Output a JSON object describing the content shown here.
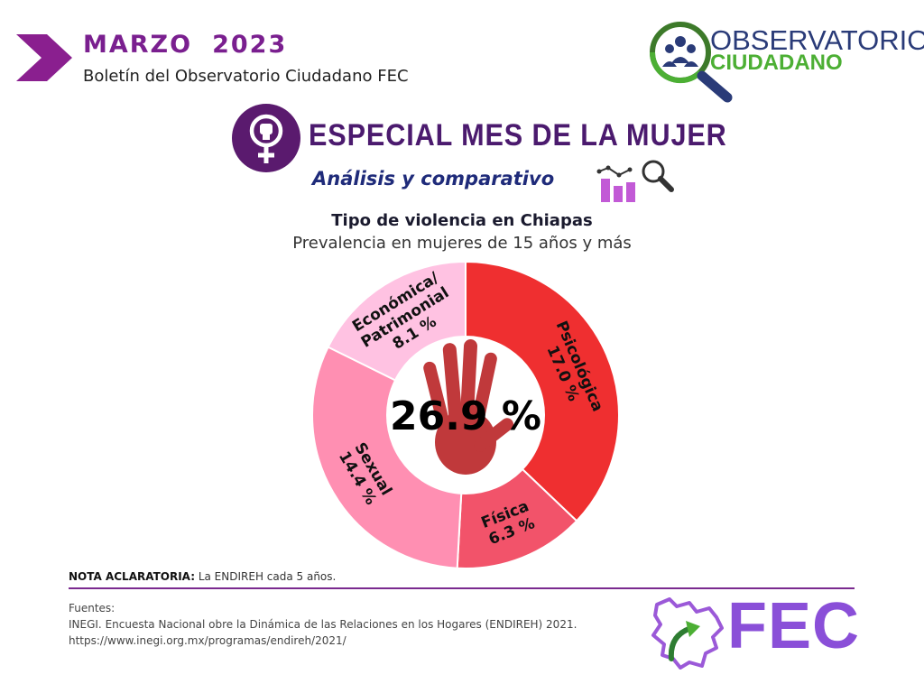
{
  "header": {
    "month": "MARZO",
    "year": "2023",
    "subtitle": "Boletín del Observatorio Ciudadano FEC"
  },
  "logo_observatorio": {
    "line1": "OBSERVATORIO",
    "line2": "CIUDADANO"
  },
  "special": {
    "title": "ESPECIAL MES DE LA MUJER",
    "analysis": "Análisis y comparativo"
  },
  "chart_data": {
    "type": "pie",
    "variant": "donut",
    "title": "Tipo de violencia en Chiapas",
    "subtitle": "Prevalencia en mujeres de 15 años y más",
    "center_label": "26.9 %",
    "slices": [
      {
        "label": "Psicológica",
        "value": 17.0,
        "value_label": "17.0 %",
        "color": "#ef2f30"
      },
      {
        "label": "Física",
        "value": 6.3,
        "value_label": "6.3 %",
        "color": "#f2536a"
      },
      {
        "label": "Sexual",
        "value": 14.4,
        "value_label": "14.4 %",
        "color": "#ff8fb2"
      },
      {
        "label": "Económica/ Patrimonial",
        "value": 8.1,
        "value_label": "8.1 %",
        "color": "#ffc2e2"
      }
    ]
  },
  "note": {
    "label": "NOTA ACLARATORIA:",
    "text": "La ENDIREH cada 5 años."
  },
  "sources": {
    "label": "Fuentes:",
    "line1": "INEGI. Encuesta Nacional obre la Dinámica de las Relaciones en los Hogares (ENDIREH) 2021.",
    "line2": "https://www.inegi.org.mx/programas/endireh/2021/"
  },
  "logo_fec": {
    "text": "FEC"
  },
  "colors": {
    "purple_brand": "#7a1f8f",
    "navy": "#1f2b7a",
    "fec_purple": "#8a4fd8",
    "hand_red": "#c0393b"
  }
}
